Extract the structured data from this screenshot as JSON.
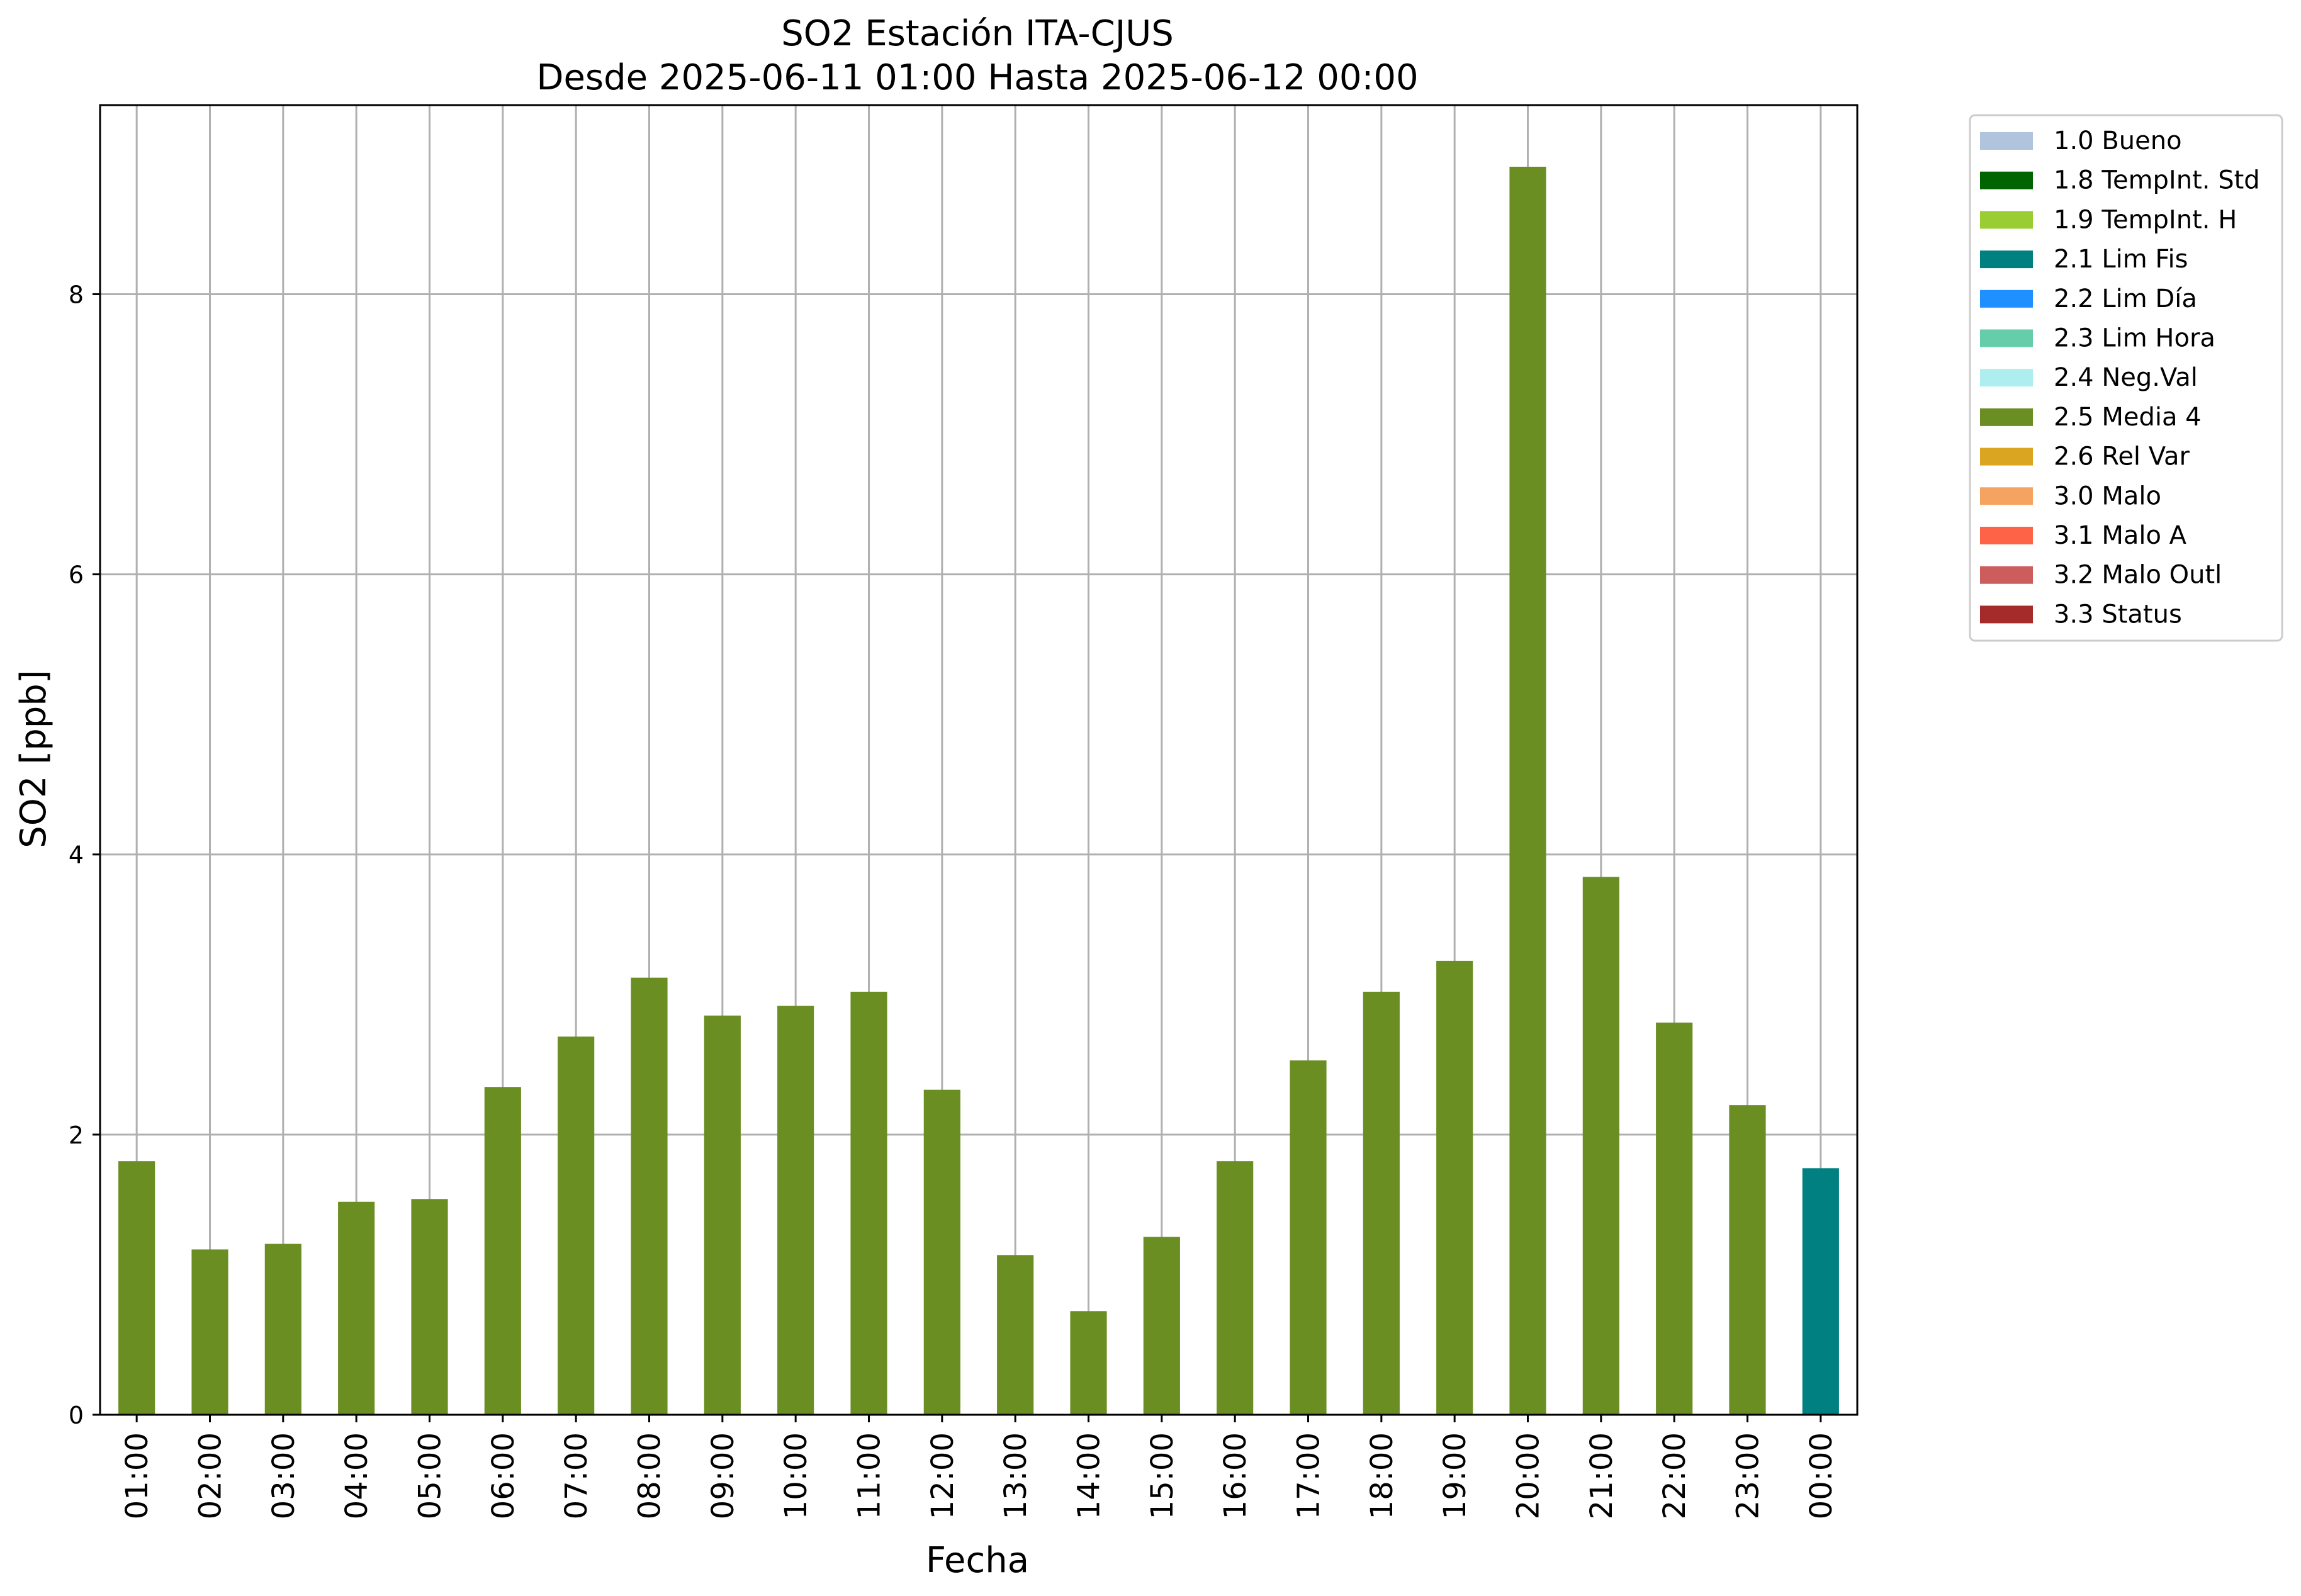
{
  "chart_data": {
    "type": "bar",
    "title": "SO2 Estación ITA-CJUS",
    "subtitle": "Desde 2025-06-11 01:00 Hasta 2025-06-12 00:00",
    "xlabel": "Fecha",
    "ylabel": "SO2 [ppb]",
    "ylim": [
      0,
      9.35
    ],
    "yticks": [
      0,
      2,
      4,
      6,
      8
    ],
    "grid": true,
    "legend_position": "outside-right",
    "categories": [
      "01:00",
      "02:00",
      "03:00",
      "04:00",
      "05:00",
      "06:00",
      "07:00",
      "08:00",
      "09:00",
      "10:00",
      "11:00",
      "12:00",
      "13:00",
      "14:00",
      "15:00",
      "16:00",
      "17:00",
      "18:00",
      "19:00",
      "20:00",
      "21:00",
      "22:00",
      "23:00",
      "00:00"
    ],
    "values": [
      1.81,
      1.18,
      1.22,
      1.52,
      1.54,
      2.34,
      2.7,
      3.12,
      2.85,
      2.92,
      3.02,
      2.32,
      1.14,
      0.74,
      1.27,
      1.81,
      2.53,
      3.02,
      3.24,
      8.91,
      3.84,
      2.8,
      2.21,
      1.76
    ],
    "value_flags": [
      "2.5 Media 4",
      "2.5 Media 4",
      "2.5 Media 4",
      "2.5 Media 4",
      "2.5 Media 4",
      "2.5 Media 4",
      "2.5 Media 4",
      "2.5 Media 4",
      "2.5 Media 4",
      "2.5 Media 4",
      "2.5 Media 4",
      "2.5 Media 4",
      "2.5 Media 4",
      "2.5 Media 4",
      "2.5 Media 4",
      "2.5 Media 4",
      "2.5 Media 4",
      "2.5 Media 4",
      "2.5 Media 4",
      "2.5 Media 4",
      "2.5 Media 4",
      "2.5 Media 4",
      "2.5 Media 4",
      "2.1 Lim Fis"
    ],
    "legend": [
      {
        "label": "1.0 Bueno",
        "color": "#b0c4de"
      },
      {
        "label": "1.8 TempInt. Std",
        "color": "#006400"
      },
      {
        "label": "1.9 TempInt. H",
        "color": "#9acd32"
      },
      {
        "label": "2.1 Lim Fis",
        "color": "#008080"
      },
      {
        "label": "2.2 Lim Día",
        "color": "#1e90ff"
      },
      {
        "label": "2.3 Lim Hora",
        "color": "#66cdaa"
      },
      {
        "label": "2.4 Neg.Val",
        "color": "#afeeee"
      },
      {
        "label": "2.5 Media 4",
        "color": "#6b8e23"
      },
      {
        "label": "2.6 Rel Var",
        "color": "#daa520"
      },
      {
        "label": "3.0 Malo",
        "color": "#f4a460"
      },
      {
        "label": "3.1 Malo A",
        "color": "#ff6347"
      },
      {
        "label": "3.2 Malo Outl",
        "color": "#cd5c5c"
      },
      {
        "label": "3.3 Status",
        "color": "#a52a2a"
      }
    ]
  }
}
